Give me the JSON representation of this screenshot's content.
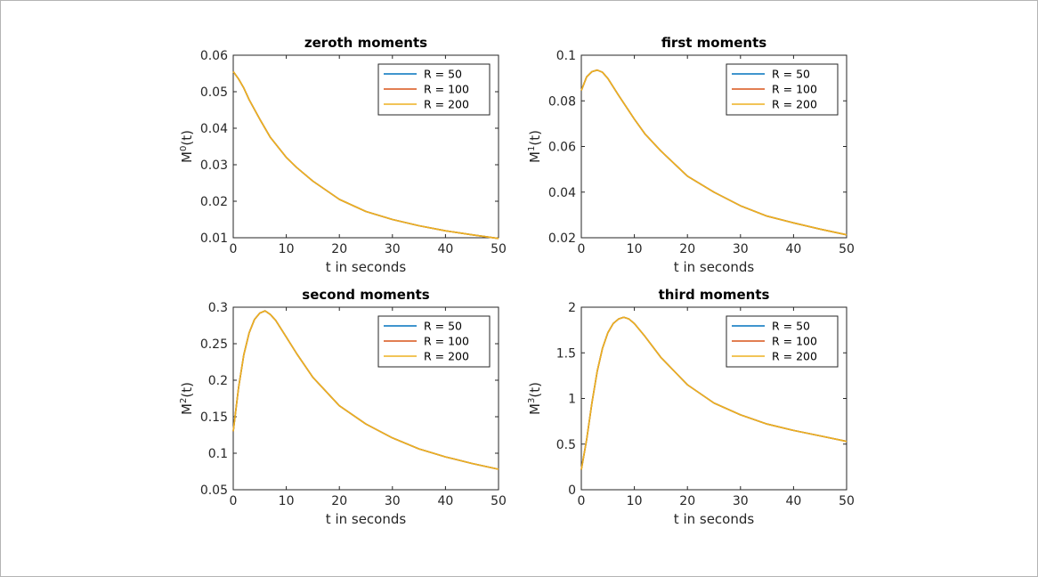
{
  "chart_data": [
    {
      "type": "line",
      "title": "zeroth moments",
      "xlabel": "t in seconds",
      "ylabel": {
        "base": "M",
        "sup": "0",
        "suffix": "(t)"
      },
      "xlim": [
        0,
        50
      ],
      "ylim": [
        0.01,
        0.06
      ],
      "xticks": [
        "0",
        "10",
        "20",
        "30",
        "40",
        "50"
      ],
      "yticks": [
        "0.01",
        "0.02",
        "0.03",
        "0.04",
        "0.05",
        "0.06"
      ],
      "legend_position": "top-right",
      "series": [
        {
          "name": "R = 50",
          "color": "#0072bd"
        },
        {
          "name": "R = 100",
          "color": "#d95319"
        },
        {
          "name": "R = 200",
          "color": "#edb120"
        }
      ],
      "x": [
        0,
        1,
        2,
        3,
        5,
        7,
        10,
        12,
        15,
        20,
        25,
        30,
        35,
        40,
        45,
        50
      ],
      "y": [
        0.0555,
        0.0535,
        0.051,
        0.0478,
        0.0425,
        0.0375,
        0.032,
        0.0292,
        0.0255,
        0.0205,
        0.0172,
        0.015,
        0.0133,
        0.0119,
        0.0108,
        0.0098
      ]
    },
    {
      "type": "line",
      "title": "first moments",
      "xlabel": "t in seconds",
      "ylabel": {
        "base": "M",
        "sup": "1",
        "suffix": "(t)"
      },
      "xlim": [
        0,
        50
      ],
      "ylim": [
        0.02,
        0.1
      ],
      "xticks": [
        "0",
        "10",
        "20",
        "30",
        "40",
        "50"
      ],
      "yticks": [
        "0.02",
        "0.04",
        "0.06",
        "0.08",
        "0.1"
      ],
      "legend_position": "top-right",
      "series": [
        {
          "name": "R = 50",
          "color": "#0072bd"
        },
        {
          "name": "R = 100",
          "color": "#d95319"
        },
        {
          "name": "R = 200",
          "color": "#edb120"
        }
      ],
      "x": [
        0,
        1,
        2,
        3,
        4,
        5,
        7,
        10,
        12,
        15,
        20,
        25,
        30,
        35,
        40,
        45,
        50
      ],
      "y": [
        0.0845,
        0.0905,
        0.0928,
        0.0935,
        0.0925,
        0.0898,
        0.0825,
        0.072,
        0.0655,
        0.058,
        0.047,
        0.04,
        0.034,
        0.0295,
        0.0265,
        0.0238,
        0.0213
      ]
    },
    {
      "type": "line",
      "title": "second moments",
      "xlabel": "t in seconds",
      "ylabel": {
        "base": "M",
        "sup": "2",
        "suffix": "(t)"
      },
      "xlim": [
        0,
        50
      ],
      "ylim": [
        0.05,
        0.3
      ],
      "xticks": [
        "0",
        "10",
        "20",
        "30",
        "40",
        "50"
      ],
      "yticks": [
        "0.05",
        "0.1",
        "0.15",
        "0.2",
        "0.25",
        "0.3"
      ],
      "legend_position": "top-right",
      "series": [
        {
          "name": "R = 50",
          "color": "#0072bd"
        },
        {
          "name": "R = 100",
          "color": "#d95319"
        },
        {
          "name": "R = 200",
          "color": "#edb120"
        }
      ],
      "x": [
        0,
        0.5,
        1,
        2,
        3,
        4,
        5,
        6,
        7,
        8,
        10,
        12,
        15,
        20,
        25,
        30,
        35,
        40,
        45,
        50
      ],
      "y": [
        0.13,
        0.16,
        0.19,
        0.235,
        0.265,
        0.283,
        0.292,
        0.295,
        0.29,
        0.282,
        0.259,
        0.236,
        0.204,
        0.165,
        0.14,
        0.121,
        0.106,
        0.095,
        0.086,
        0.078
      ]
    },
    {
      "type": "line",
      "title": "third moments",
      "xlabel": "t in seconds",
      "ylabel": {
        "base": "M",
        "sup": "3",
        "suffix": "(t)"
      },
      "xlim": [
        0,
        50
      ],
      "ylim": [
        0,
        2
      ],
      "xticks": [
        "0",
        "10",
        "20",
        "30",
        "40",
        "50"
      ],
      "yticks": [
        "0",
        "0.5",
        "1",
        "1.5",
        "2"
      ],
      "legend_position": "top-right",
      "series": [
        {
          "name": "R = 50",
          "color": "#0072bd"
        },
        {
          "name": "R = 100",
          "color": "#d95319"
        },
        {
          "name": "R = 200",
          "color": "#edb120"
        }
      ],
      "x": [
        0,
        1,
        2,
        3,
        4,
        5,
        6,
        7,
        8,
        9,
        10,
        12,
        15,
        20,
        25,
        30,
        35,
        40,
        45,
        50
      ],
      "y": [
        0.22,
        0.55,
        0.95,
        1.3,
        1.55,
        1.72,
        1.82,
        1.87,
        1.89,
        1.87,
        1.82,
        1.68,
        1.45,
        1.15,
        0.95,
        0.82,
        0.72,
        0.65,
        0.59,
        0.53
      ]
    }
  ]
}
